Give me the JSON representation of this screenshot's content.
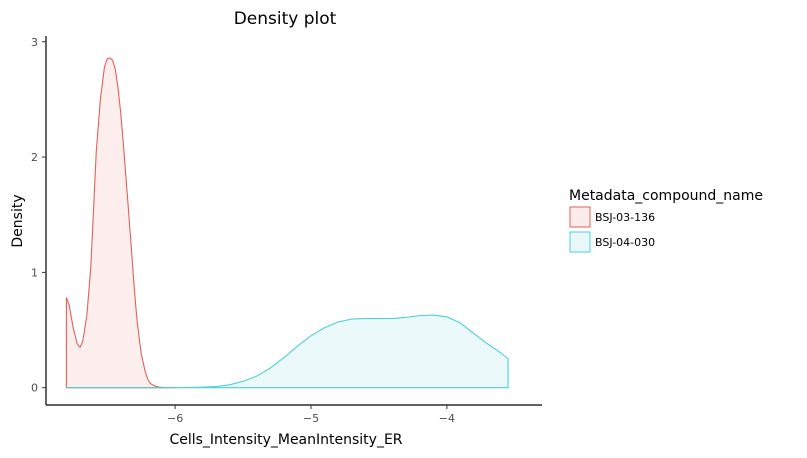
{
  "chart_data": {
    "type": "area",
    "title": "Density plot",
    "xlabel": "Cells_Intensity_MeanIntensity_ER",
    "ylabel": "Density",
    "xlim": [
      -6.95,
      -3.3
    ],
    "ylim": [
      -0.15,
      3.05
    ],
    "x_ticks": [
      -6,
      -5,
      -4
    ],
    "x_tick_labels": [
      "−6",
      "−5",
      "−4"
    ],
    "y_ticks": [
      0,
      1,
      2,
      3
    ],
    "y_tick_labels": [
      "0",
      "1",
      "2",
      "3"
    ],
    "grid": false,
    "legend": {
      "title": "Metadata_compound_name",
      "placement": "right"
    },
    "series": [
      {
        "name": "BSJ-03-136",
        "color": "#e0625a",
        "fill": "#fcebea",
        "x": [
          -6.8,
          -6.78,
          -6.75,
          -6.72,
          -6.7,
          -6.68,
          -6.65,
          -6.62,
          -6.6,
          -6.58,
          -6.55,
          -6.52,
          -6.5,
          -6.48,
          -6.46,
          -6.44,
          -6.42,
          -6.4,
          -6.38,
          -6.35,
          -6.32,
          -6.3,
          -6.28,
          -6.25,
          -6.22,
          -6.2,
          -6.18,
          -6.15,
          -6.12,
          -6.1,
          -6.08,
          -6.05,
          -6.0
        ],
        "y": [
          0.78,
          0.72,
          0.52,
          0.38,
          0.35,
          0.4,
          0.62,
          1.05,
          1.55,
          2.05,
          2.5,
          2.78,
          2.85,
          2.86,
          2.84,
          2.76,
          2.6,
          2.38,
          2.1,
          1.65,
          1.18,
          0.86,
          0.58,
          0.3,
          0.14,
          0.07,
          0.035,
          0.015,
          0.006,
          0.003,
          0.001,
          0.0,
          0.0
        ]
      },
      {
        "name": "BSJ-04-030",
        "color": "#4fd0d6",
        "fill": "#e8f8f9",
        "x": [
          -6.8,
          -6.5,
          -6.2,
          -6.0,
          -5.8,
          -5.7,
          -5.6,
          -5.5,
          -5.4,
          -5.3,
          -5.2,
          -5.1,
          -5.0,
          -4.9,
          -4.8,
          -4.7,
          -4.6,
          -4.5,
          -4.4,
          -4.3,
          -4.2,
          -4.1,
          -4.0,
          -3.9,
          -3.8,
          -3.7,
          -3.6,
          -3.55
        ],
        "y": [
          0.0,
          0.0,
          0.0,
          0.0,
          0.005,
          0.01,
          0.025,
          0.055,
          0.1,
          0.17,
          0.26,
          0.36,
          0.45,
          0.52,
          0.57,
          0.595,
          0.6,
          0.6,
          0.6,
          0.61,
          0.625,
          0.63,
          0.615,
          0.56,
          0.47,
          0.38,
          0.3,
          0.25
        ]
      }
    ]
  }
}
